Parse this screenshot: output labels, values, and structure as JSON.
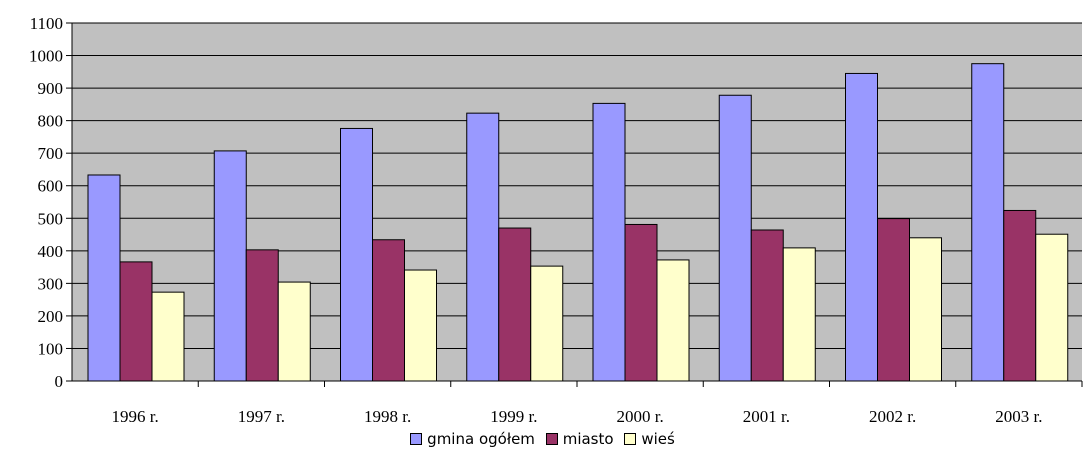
{
  "chart_data": {
    "type": "bar",
    "categories": [
      "1996 r.",
      "1997 r.",
      "1998 r.",
      "1999 r.",
      "2000 r.",
      "2001 r.",
      "2002 r.",
      "2003 r."
    ],
    "series": [
      {
        "name": "gmina ogółem",
        "color": "#9999ff",
        "values": [
          633,
          707,
          776,
          823,
          853,
          878,
          945,
          975
        ]
      },
      {
        "name": "miasto",
        "color": "#993366",
        "values": [
          366,
          403,
          434,
          470,
          481,
          464,
          499,
          524
        ]
      },
      {
        "name": "wieś",
        "color": "#ffffcc",
        "values": [
          273,
          304,
          341,
          353,
          372,
          409,
          440,
          451
        ]
      }
    ],
    "ylim": [
      0,
      1100
    ],
    "yticks": [
      0,
      100,
      200,
      300,
      400,
      500,
      600,
      700,
      800,
      900,
      1000,
      1100
    ],
    "plot_background": "#c0c0c0",
    "grid": true,
    "legend_position": "bottom"
  }
}
